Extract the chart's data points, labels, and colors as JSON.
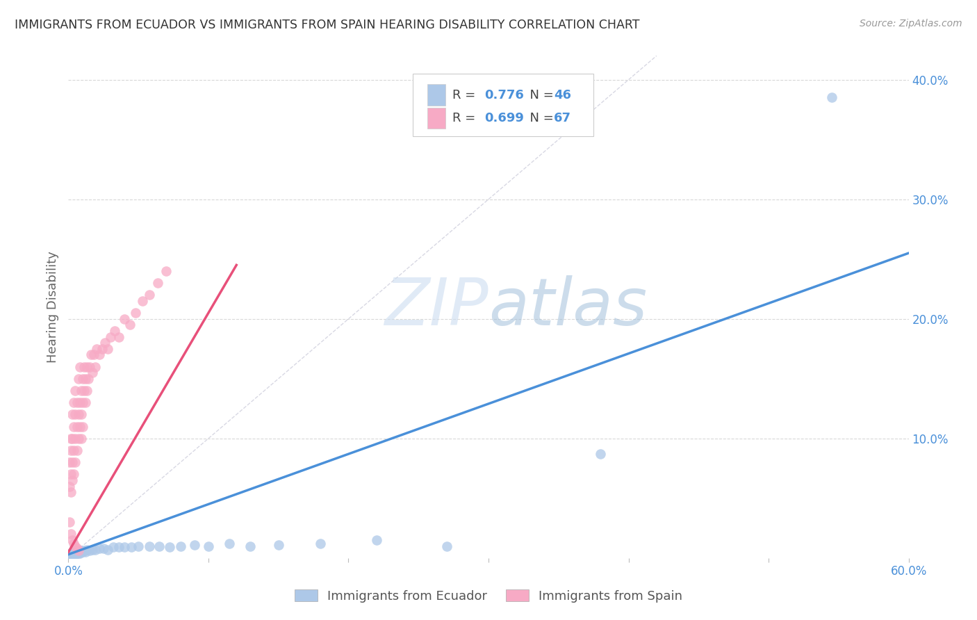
{
  "title": "IMMIGRANTS FROM ECUADOR VS IMMIGRANTS FROM SPAIN HEARING DISABILITY CORRELATION CHART",
  "source": "Source: ZipAtlas.com",
  "ylabel": "Hearing Disability",
  "watermark_zip": "ZIP",
  "watermark_atlas": "atlas",
  "xlim": [
    0.0,
    0.6
  ],
  "ylim": [
    0.0,
    0.42
  ],
  "xtick_vals": [
    0.0,
    0.1,
    0.2,
    0.3,
    0.4,
    0.5,
    0.6
  ],
  "xtick_labels": [
    "0.0%",
    "",
    "",
    "",
    "",
    "",
    "60.0%"
  ],
  "ytick_vals_right": [
    0.1,
    0.2,
    0.3,
    0.4
  ],
  "ytick_labels_right": [
    "10.0%",
    "20.0%",
    "30.0%",
    "40.0%"
  ],
  "ecuador_color": "#adc8e8",
  "spain_color": "#f7aac5",
  "ecuador_line_color": "#4a90d9",
  "spain_line_color": "#e8507a",
  "diagonal_color": "#c8c8d8",
  "legend_label_ecuador": "Immigrants from Ecuador",
  "legend_label_spain": "Immigrants from Spain",
  "ecuador_scatter_x": [
    0.001,
    0.002,
    0.002,
    0.003,
    0.003,
    0.004,
    0.004,
    0.005,
    0.005,
    0.006,
    0.006,
    0.007,
    0.007,
    0.008,
    0.008,
    0.009,
    0.01,
    0.011,
    0.012,
    0.013,
    0.015,
    0.017,
    0.019,
    0.022,
    0.025,
    0.028,
    0.032,
    0.036,
    0.04,
    0.045,
    0.05,
    0.058,
    0.065,
    0.072,
    0.08,
    0.09,
    0.1,
    0.115,
    0.13,
    0.15,
    0.18,
    0.22,
    0.27,
    0.38,
    0.545,
    0.002
  ],
  "ecuador_scatter_y": [
    0.002,
    0.003,
    0.004,
    0.002,
    0.005,
    0.003,
    0.004,
    0.003,
    0.005,
    0.004,
    0.005,
    0.004,
    0.006,
    0.005,
    0.004,
    0.006,
    0.005,
    0.006,
    0.005,
    0.007,
    0.006,
    0.007,
    0.007,
    0.008,
    0.008,
    0.007,
    0.009,
    0.009,
    0.009,
    0.009,
    0.01,
    0.01,
    0.01,
    0.009,
    0.01,
    0.011,
    0.01,
    0.012,
    0.01,
    0.011,
    0.012,
    0.015,
    0.01,
    0.087,
    0.385,
    0.001
  ],
  "ecuador_line_x": [
    0.0,
    0.6
  ],
  "ecuador_line_y": [
    0.003,
    0.255
  ],
  "spain_scatter_x": [
    0.001,
    0.001,
    0.002,
    0.002,
    0.002,
    0.002,
    0.003,
    0.003,
    0.003,
    0.003,
    0.004,
    0.004,
    0.004,
    0.004,
    0.005,
    0.005,
    0.005,
    0.005,
    0.006,
    0.006,
    0.006,
    0.007,
    0.007,
    0.007,
    0.008,
    0.008,
    0.008,
    0.009,
    0.009,
    0.009,
    0.01,
    0.01,
    0.01,
    0.011,
    0.011,
    0.012,
    0.012,
    0.013,
    0.013,
    0.014,
    0.015,
    0.016,
    0.017,
    0.018,
    0.019,
    0.02,
    0.022,
    0.024,
    0.026,
    0.028,
    0.03,
    0.033,
    0.036,
    0.04,
    0.044,
    0.048,
    0.053,
    0.058,
    0.064,
    0.07,
    0.001,
    0.002,
    0.003,
    0.004,
    0.005,
    0.006,
    0.007
  ],
  "spain_scatter_y": [
    0.06,
    0.08,
    0.07,
    0.09,
    0.1,
    0.055,
    0.08,
    0.1,
    0.12,
    0.065,
    0.09,
    0.11,
    0.13,
    0.07,
    0.1,
    0.12,
    0.08,
    0.14,
    0.09,
    0.11,
    0.13,
    0.1,
    0.12,
    0.15,
    0.11,
    0.13,
    0.16,
    0.12,
    0.14,
    0.1,
    0.13,
    0.15,
    0.11,
    0.14,
    0.16,
    0.13,
    0.15,
    0.14,
    0.16,
    0.15,
    0.16,
    0.17,
    0.155,
    0.17,
    0.16,
    0.175,
    0.17,
    0.175,
    0.18,
    0.175,
    0.185,
    0.19,
    0.185,
    0.2,
    0.195,
    0.205,
    0.215,
    0.22,
    0.23,
    0.24,
    0.03,
    0.02,
    0.015,
    0.012,
    0.01,
    0.008,
    0.006
  ],
  "spain_line_x": [
    0.0,
    0.12
  ],
  "spain_line_y": [
    0.005,
    0.245
  ]
}
